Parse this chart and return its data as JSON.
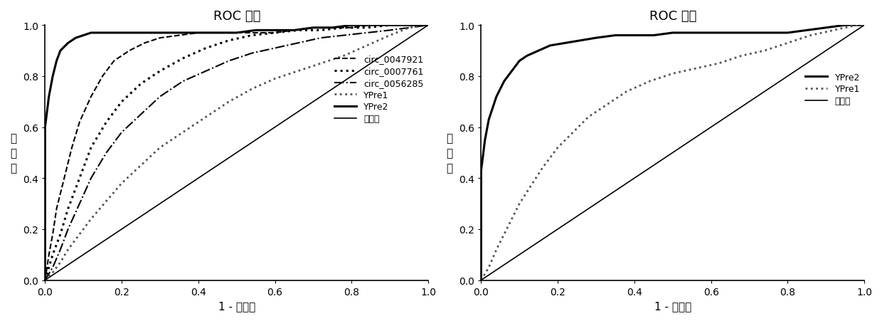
{
  "title": "ROC 曲线",
  "xlabel1": "1 - 特异性",
  "xlabel2": "1 - 特异度",
  "ylabel": "灵\n敏\n度",
  "ref_label": "参考线",
  "background_color": "#ffffff",
  "plot1": {
    "circ_0047921": {
      "fpr": [
        0.0,
        0.01,
        0.02,
        0.03,
        0.05,
        0.07,
        0.09,
        0.12,
        0.15,
        0.18,
        0.22,
        0.26,
        0.3,
        0.35,
        0.4,
        0.45,
        0.5,
        0.55,
        0.6,
        0.65,
        0.7,
        0.75,
        0.8,
        0.85,
        0.9,
        0.95,
        1.0
      ],
      "tpr": [
        0.0,
        0.1,
        0.18,
        0.28,
        0.4,
        0.52,
        0.62,
        0.72,
        0.8,
        0.86,
        0.9,
        0.93,
        0.95,
        0.96,
        0.97,
        0.97,
        0.97,
        0.97,
        0.97,
        0.98,
        0.99,
        0.99,
        0.99,
        1.0,
        1.0,
        1.0,
        1.0
      ],
      "style": "--",
      "color": "#000000",
      "lw": 1.5,
      "label": "circ_0047921"
    },
    "circ_0007761": {
      "fpr": [
        0.0,
        0.01,
        0.02,
        0.04,
        0.06,
        0.09,
        0.12,
        0.16,
        0.2,
        0.25,
        0.3,
        0.36,
        0.42,
        0.48,
        0.54,
        0.6,
        0.66,
        0.72,
        0.78,
        0.84,
        0.9,
        0.95,
        1.0
      ],
      "tpr": [
        0.0,
        0.05,
        0.1,
        0.18,
        0.28,
        0.4,
        0.52,
        0.62,
        0.7,
        0.77,
        0.82,
        0.87,
        0.91,
        0.94,
        0.96,
        0.97,
        0.98,
        0.98,
        0.99,
        0.99,
        1.0,
        1.0,
        1.0
      ],
      "style": ":",
      "color": "#000000",
      "lw": 2.2,
      "label": "circ_0007761"
    },
    "circ_0056285": {
      "fpr": [
        0.0,
        0.02,
        0.04,
        0.06,
        0.09,
        0.12,
        0.16,
        0.2,
        0.25,
        0.3,
        0.36,
        0.42,
        0.48,
        0.54,
        0.6,
        0.66,
        0.72,
        0.78,
        0.84,
        0.9,
        0.95,
        1.0
      ],
      "tpr": [
        0.0,
        0.05,
        0.12,
        0.2,
        0.3,
        0.4,
        0.5,
        0.58,
        0.65,
        0.72,
        0.78,
        0.82,
        0.86,
        0.89,
        0.91,
        0.93,
        0.95,
        0.96,
        0.97,
        0.98,
        0.99,
        1.0
      ],
      "style": "-.",
      "color": "#000000",
      "lw": 1.5,
      "label": "circ_0056285"
    },
    "YPre1": {
      "fpr": [
        0.0,
        0.02,
        0.04,
        0.06,
        0.09,
        0.12,
        0.16,
        0.2,
        0.25,
        0.3,
        0.36,
        0.42,
        0.48,
        0.54,
        0.6,
        0.66,
        0.72,
        0.78,
        0.84,
        0.9,
        0.95,
        1.0
      ],
      "tpr": [
        0.0,
        0.03,
        0.07,
        0.12,
        0.18,
        0.24,
        0.31,
        0.38,
        0.45,
        0.52,
        0.58,
        0.64,
        0.7,
        0.75,
        0.79,
        0.82,
        0.85,
        0.88,
        0.92,
        0.96,
        0.99,
        1.0
      ],
      "style": ":",
      "color": "#555555",
      "lw": 2.0,
      "label": "YPre1"
    },
    "YPre2": {
      "fpr": [
        0.0,
        0.0,
        0.0,
        0.01,
        0.02,
        0.03,
        0.04,
        0.06,
        0.08,
        0.1,
        0.12,
        0.15,
        0.18,
        0.22,
        0.26,
        0.3,
        0.35,
        0.4,
        0.45,
        0.5,
        0.55,
        0.6,
        0.65,
        0.7,
        0.75,
        0.8,
        0.85,
        0.9,
        0.95,
        1.0
      ],
      "tpr": [
        0.0,
        0.3,
        0.6,
        0.72,
        0.8,
        0.86,
        0.9,
        0.93,
        0.95,
        0.96,
        0.97,
        0.97,
        0.97,
        0.97,
        0.97,
        0.97,
        0.97,
        0.97,
        0.97,
        0.97,
        0.98,
        0.98,
        0.98,
        0.99,
        0.99,
        1.0,
        1.0,
        1.0,
        1.0,
        1.0
      ],
      "style": "-",
      "color": "#000000",
      "lw": 2.2,
      "label": "YPre2"
    }
  },
  "plot2": {
    "YPre2": {
      "fpr": [
        0.0,
        0.0,
        0.0,
        0.01,
        0.02,
        0.04,
        0.06,
        0.08,
        0.1,
        0.12,
        0.15,
        0.18,
        0.22,
        0.26,
        0.3,
        0.35,
        0.4,
        0.45,
        0.5,
        0.55,
        0.6,
        0.65,
        0.7,
        0.75,
        0.8,
        0.85,
        0.9,
        0.95,
        1.0
      ],
      "tpr": [
        0.0,
        0.31,
        0.43,
        0.55,
        0.63,
        0.72,
        0.78,
        0.82,
        0.86,
        0.88,
        0.9,
        0.92,
        0.93,
        0.94,
        0.95,
        0.96,
        0.96,
        0.96,
        0.97,
        0.97,
        0.97,
        0.97,
        0.97,
        0.97,
        0.97,
        0.98,
        0.99,
        1.0,
        1.0
      ],
      "style": "-",
      "color": "#000000",
      "lw": 2.2,
      "label": "YPre2"
    },
    "YPre1": {
      "fpr": [
        0.0,
        0.02,
        0.04,
        0.06,
        0.08,
        0.1,
        0.13,
        0.16,
        0.2,
        0.24,
        0.28,
        0.33,
        0.38,
        0.44,
        0.5,
        0.56,
        0.62,
        0.68,
        0.74,
        0.8,
        0.86,
        0.92,
        0.98,
        1.0
      ],
      "tpr": [
        0.0,
        0.05,
        0.12,
        0.18,
        0.24,
        0.3,
        0.37,
        0.44,
        0.52,
        0.58,
        0.64,
        0.69,
        0.74,
        0.78,
        0.81,
        0.83,
        0.85,
        0.88,
        0.9,
        0.93,
        0.96,
        0.98,
        1.0,
        1.0
      ],
      "style": ":",
      "color": "#555555",
      "lw": 2.0,
      "label": "YPre1"
    }
  },
  "tick_fontsize": 10,
  "label_fontsize": 11,
  "title_fontsize": 13,
  "legend_fontsize": 9
}
